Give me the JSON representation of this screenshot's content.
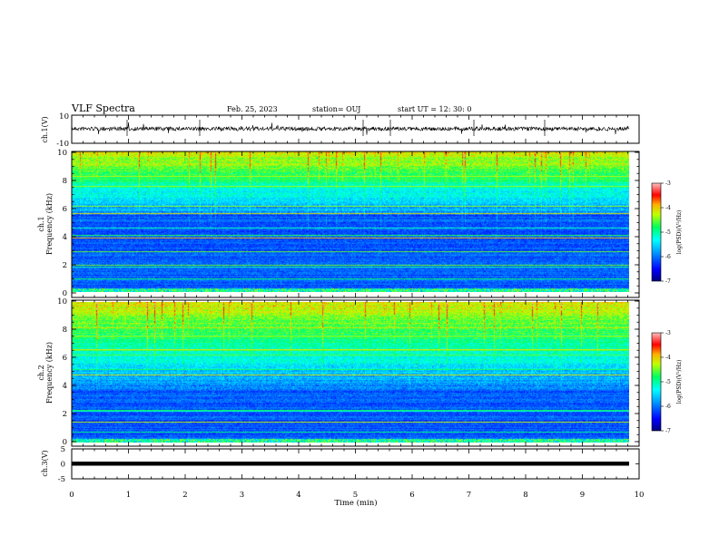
{
  "header": {
    "title": "VLF Spectra",
    "date": "Feb. 25, 2023",
    "station": "station= OUJ",
    "start": "start  UT =   12: 30: 0"
  },
  "chart_data": [
    {
      "type": "line",
      "panel": "ch1-waveform",
      "ylabel": "ch.1(V)",
      "ylim": [
        -10,
        10
      ],
      "yticks": [
        "10",
        "-10"
      ],
      "xlim": [
        0,
        10
      ],
      "series_description_value_baseline": 0,
      "color": "#000000"
    },
    {
      "type": "heatmap",
      "panel": "ch1-spectrogram",
      "ylabel": "ch.1\nFrequency (kHz)",
      "ylabel_line1": "ch.1",
      "ylabel_line2": "Frequency (kHz)",
      "ylim": [
        0,
        10
      ],
      "yticks": [
        "0",
        "2",
        "4",
        "6",
        "8",
        "10"
      ],
      "xlim": [
        0,
        9.8
      ],
      "colorbar": {
        "label": "log(PSD)(V²/Hz)",
        "range": [
          -7,
          -3
        ],
        "ticks": [
          "-3",
          "-4",
          "-5",
          "-6",
          "-7"
        ]
      }
    },
    {
      "type": "heatmap",
      "panel": "ch2-spectrogram",
      "ylabel_line1": "ch.2",
      "ylabel_line2": "Frequency (kHz)",
      "ylim": [
        0,
        10
      ],
      "yticks": [
        "0",
        "2",
        "4",
        "6",
        "8",
        "10"
      ],
      "xlim": [
        0,
        9.8
      ],
      "colorbar": {
        "label": "log(PSD)(V²/Hz)",
        "range": [
          -7,
          -3
        ],
        "ticks": [
          "-3",
          "-4",
          "-5",
          "-6",
          "-7"
        ]
      }
    },
    {
      "type": "line",
      "panel": "ch3-waveform",
      "ylabel": "ch.3(V)",
      "ylim": [
        -5,
        5
      ],
      "yticks": [
        "5",
        "0",
        "-5"
      ],
      "xlim": [
        0,
        10
      ],
      "series_value": -1,
      "color": "#000000"
    }
  ],
  "xaxis": {
    "label": "Time  (min)",
    "ticks": [
      "0",
      "1",
      "2",
      "3",
      "4",
      "5",
      "6",
      "7",
      "8",
      "9",
      "10"
    ],
    "range": [
      0,
      10
    ]
  },
  "colormap": [
    "#000080",
    "#0000ff",
    "#0080ff",
    "#00ffff",
    "#00ff80",
    "#80ff00",
    "#ffff00",
    "#ff8000",
    "#ff0000",
    "#ff8080"
  ]
}
